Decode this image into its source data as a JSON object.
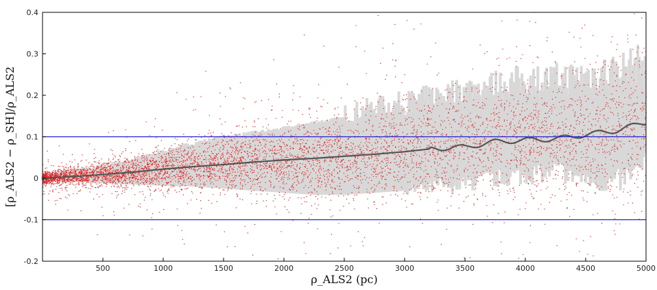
{
  "chart_data": {
    "type": "scatter",
    "title": "",
    "xlabel": "ρ_ALS2 (pc)",
    "ylabel": "[ρ_ALS2 − ρ_SH]/ρ_ALS2",
    "xlim": [
      0,
      5000
    ],
    "ylim": [
      -0.2,
      0.4
    ],
    "x_ticks": [
      500,
      1000,
      1500,
      2000,
      2500,
      3000,
      3500,
      4000,
      4500,
      5000
    ],
    "y_ticks": [
      -0.2,
      -0.1,
      0,
      0.1,
      0.2,
      0.3,
      0.4
    ],
    "y_tick_labels": [
      "-0.2",
      "-0.1",
      "0",
      "0.1",
      "0.2",
      "0.3",
      "0.4"
    ],
    "x_tick_labels": [
      "500",
      "1000",
      "1500",
      "2000",
      "2500",
      "3000",
      "3500",
      "4000",
      "4500",
      "5000"
    ],
    "grid": false,
    "reference_lines": [
      {
        "y": 0.1,
        "color": "#2020d0"
      },
      {
        "y": -0.1,
        "color": "#2020d0"
      }
    ],
    "running_median": {
      "x": [
        0,
        250,
        500,
        750,
        1000,
        1250,
        1500,
        1750,
        2000,
        2250,
        2500,
        2750,
        3000,
        3250,
        3500,
        3750,
        4000,
        4250,
        4500,
        4750,
        5000
      ],
      "y": [
        0.0,
        0.004,
        0.009,
        0.015,
        0.022,
        0.028,
        0.033,
        0.039,
        0.044,
        0.048,
        0.053,
        0.058,
        0.064,
        0.072,
        0.075,
        0.088,
        0.092,
        0.095,
        0.105,
        0.115,
        0.135
      ],
      "color": "#555555"
    },
    "dispersion_band": {
      "x": [
        0,
        250,
        500,
        750,
        1000,
        1250,
        1500,
        1750,
        2000,
        2250,
        2500,
        2750,
        3000,
        3250,
        3500,
        3750,
        4000,
        4250,
        4500,
        4750,
        5000
      ],
      "lower": [
        -0.005,
        -0.008,
        -0.012,
        -0.015,
        -0.018,
        -0.02,
        -0.025,
        -0.03,
        -0.035,
        -0.04,
        -0.04,
        -0.035,
        -0.03,
        -0.02,
        -0.01,
        0.0,
        0.01,
        0.02,
        0.0,
        -0.01,
        0.03
      ],
      "upper": [
        0.01,
        0.018,
        0.03,
        0.045,
        0.065,
        0.085,
        0.1,
        0.11,
        0.12,
        0.135,
        0.145,
        0.16,
        0.17,
        0.185,
        0.2,
        0.21,
        0.22,
        0.22,
        0.23,
        0.24,
        0.26
      ],
      "color": "#d8d8d8"
    },
    "scatter_color": "#e02020",
    "colors": {
      "points": "#e02020",
      "band": "#d8d8d8",
      "median": "#555555",
      "reference": "#2020d0",
      "axes": "#000000"
    }
  }
}
